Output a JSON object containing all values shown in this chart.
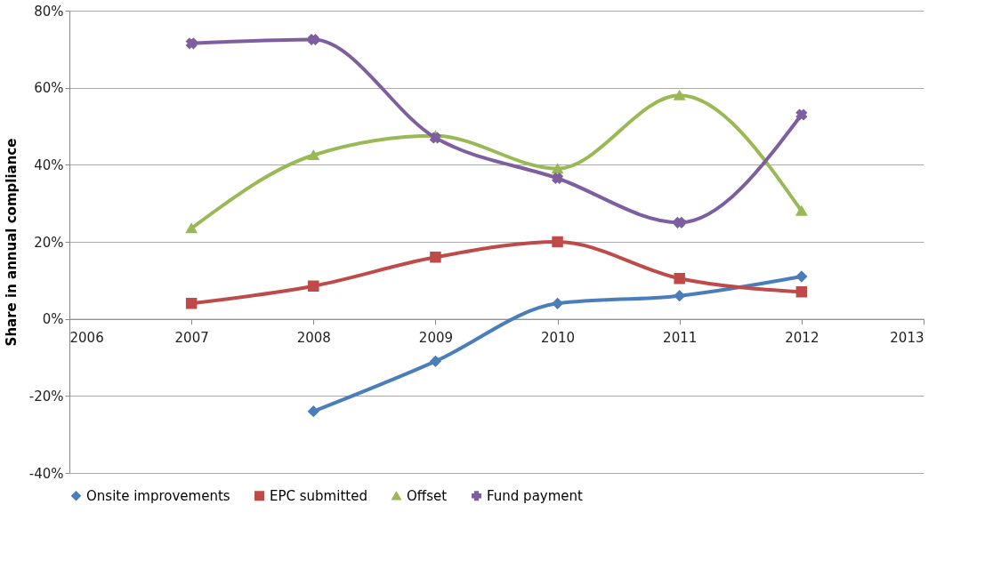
{
  "chart_data": {
    "type": "line",
    "ylabel": "Share in annual compliance",
    "x": [
      2007,
      2008,
      2009,
      2010,
      2011,
      2012
    ],
    "xlim": [
      2006,
      2013
    ],
    "xticks": [
      2006,
      2007,
      2008,
      2009,
      2010,
      2011,
      2012,
      2013
    ],
    "ylim": [
      -40,
      80
    ],
    "yticks": [
      {
        "value": -40,
        "label": "-40%"
      },
      {
        "value": -20,
        "label": "-20%"
      },
      {
        "value": 0,
        "label": "0%"
      },
      {
        "value": 20,
        "label": "20%"
      },
      {
        "value": 40,
        "label": "40%"
      },
      {
        "value": 60,
        "label": "60%"
      },
      {
        "value": 80,
        "label": "80%"
      }
    ],
    "grid": "y",
    "legend": "bottom",
    "series": [
      {
        "name": "Onsite improvements",
        "color": "#4a7ebb",
        "marker": "diamond",
        "values": [
          null,
          -24,
          -11,
          4,
          6,
          11
        ]
      },
      {
        "name": "EPC submitted",
        "color": "#be4b48",
        "marker": "square",
        "values": [
          4,
          8.5,
          16,
          20,
          10.5,
          7
        ]
      },
      {
        "name": "Offset",
        "color": "#98b954",
        "marker": "triangle",
        "values": [
          23.5,
          42.5,
          47.5,
          39,
          58,
          28
        ]
      },
      {
        "name": "Fund payment",
        "color": "#7d5fa0",
        "marker": "cross",
        "values": [
          71.5,
          72.5,
          47,
          36.5,
          25,
          53
        ]
      }
    ]
  }
}
